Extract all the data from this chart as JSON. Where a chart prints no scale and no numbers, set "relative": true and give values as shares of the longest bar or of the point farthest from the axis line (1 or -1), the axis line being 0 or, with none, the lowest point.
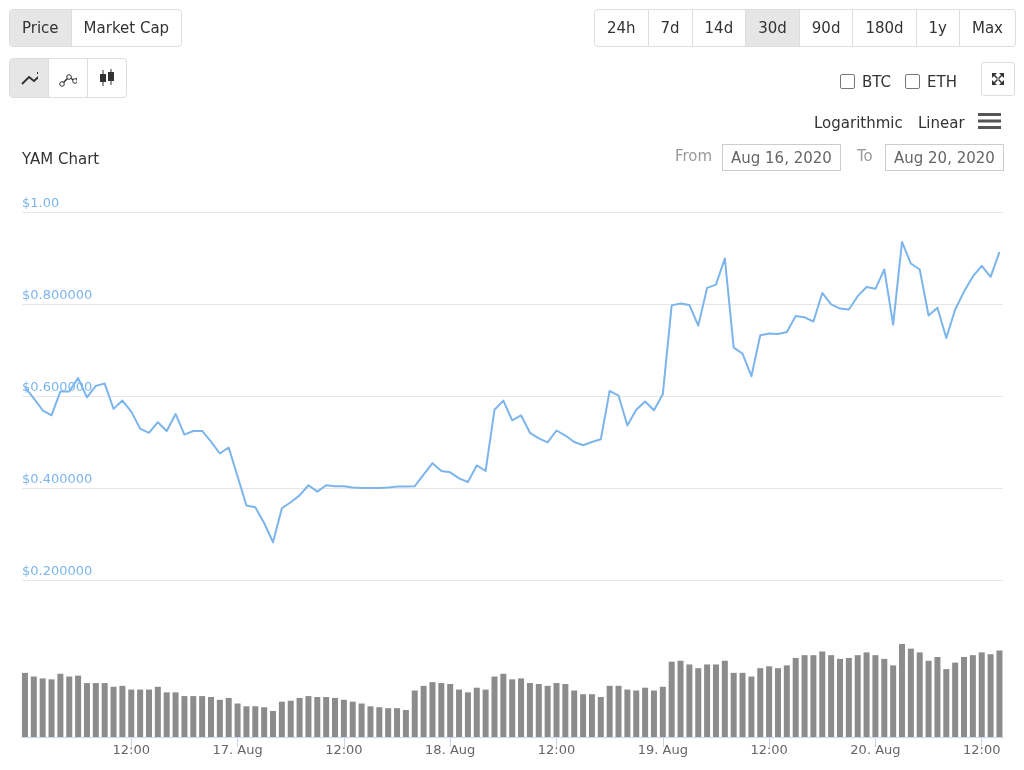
{
  "chart_data": [
    {
      "type": "line",
      "title": "YAM Chart",
      "color": "#7cb5ec",
      "marker": "none",
      "grid": "y",
      "tick_labels": "y",
      "annotations": [
        "Price",
        "Market Cap",
        "24h",
        "7d",
        "14d",
        "30d",
        "90d",
        "180d",
        "1y",
        "Max",
        "BTC",
        "ETH",
        "Logarithmic",
        "Linear",
        "From",
        "Aug 16, 2020",
        "To",
        "Aug 20, 2020"
      ],
      "xlim": [
        "2020-08-15T23:40",
        "2020-08-20T14:24"
      ],
      "ylim": [
        0.2,
        1.0
      ],
      "yticks": [
        {
          "value": 0.2,
          "label": "$0.200000"
        },
        {
          "value": 0.4,
          "label": "$0.400000"
        },
        {
          "value": 0.6,
          "label": "$0.600000"
        },
        {
          "value": 0.8,
          "label": "$0.800000"
        },
        {
          "value": 1.0,
          "label": "$1.00"
        }
      ],
      "x": [
        "2020-08-16T00:00",
        "2020-08-16T01:00",
        "2020-08-16T02:00",
        "2020-08-16T03:00",
        "2020-08-16T04:00",
        "2020-08-16T05:00",
        "2020-08-16T06:00",
        "2020-08-16T07:00",
        "2020-08-16T08:00",
        "2020-08-16T09:00",
        "2020-08-16T10:00",
        "2020-08-16T11:00",
        "2020-08-16T12:00",
        "2020-08-16T13:00",
        "2020-08-16T14:00",
        "2020-08-16T15:00",
        "2020-08-16T16:00",
        "2020-08-16T17:00",
        "2020-08-16T18:00",
        "2020-08-16T19:00",
        "2020-08-16T20:00",
        "2020-08-16T21:00",
        "2020-08-16T22:00",
        "2020-08-16T23:00",
        "2020-08-17T00:00",
        "2020-08-17T01:00",
        "2020-08-17T02:00",
        "2020-08-17T03:00",
        "2020-08-17T04:00",
        "2020-08-17T05:00",
        "2020-08-17T06:00",
        "2020-08-17T07:00",
        "2020-08-17T08:00",
        "2020-08-17T09:00",
        "2020-08-17T10:00",
        "2020-08-17T11:00",
        "2020-08-17T12:00",
        "2020-08-17T13:00",
        "2020-08-17T14:00",
        "2020-08-17T15:00",
        "2020-08-17T16:00",
        "2020-08-17T17:00",
        "2020-08-17T18:00",
        "2020-08-17T19:00",
        "2020-08-17T20:00",
        "2020-08-17T21:00",
        "2020-08-17T22:00",
        "2020-08-17T23:00",
        "2020-08-18T00:00",
        "2020-08-18T01:00",
        "2020-08-18T02:00",
        "2020-08-18T03:00",
        "2020-08-18T04:00",
        "2020-08-18T05:00",
        "2020-08-18T06:00",
        "2020-08-18T07:00",
        "2020-08-18T08:00",
        "2020-08-18T09:00",
        "2020-08-18T10:00",
        "2020-08-18T11:00",
        "2020-08-18T12:00",
        "2020-08-18T13:00",
        "2020-08-18T14:00",
        "2020-08-18T15:00",
        "2020-08-18T16:00",
        "2020-08-18T17:00",
        "2020-08-18T18:00",
        "2020-08-18T19:00",
        "2020-08-18T20:00",
        "2020-08-18T21:00",
        "2020-08-18T22:00",
        "2020-08-18T23:00",
        "2020-08-19T00:00",
        "2020-08-19T01:00",
        "2020-08-19T02:00",
        "2020-08-19T03:00",
        "2020-08-19T04:00",
        "2020-08-19T05:00",
        "2020-08-19T06:00",
        "2020-08-19T07:00",
        "2020-08-19T08:00",
        "2020-08-19T09:00",
        "2020-08-19T10:00",
        "2020-08-19T11:00",
        "2020-08-19T12:00",
        "2020-08-19T13:00",
        "2020-08-19T14:00",
        "2020-08-19T15:00",
        "2020-08-19T16:00",
        "2020-08-19T17:00",
        "2020-08-19T18:00",
        "2020-08-19T19:00",
        "2020-08-19T20:00",
        "2020-08-19T21:00",
        "2020-08-19T22:00",
        "2020-08-19T23:00",
        "2020-08-20T00:00",
        "2020-08-20T01:00",
        "2020-08-20T02:00",
        "2020-08-20T03:00",
        "2020-08-20T04:00",
        "2020-08-20T05:00",
        "2020-08-20T06:00",
        "2020-08-20T07:00",
        "2020-08-20T08:00",
        "2020-08-20T09:00",
        "2020-08-20T10:00",
        "2020-08-20T11:00",
        "2020-08-20T12:00",
        "2020-08-20T13:00",
        "2020-08-20T14:00"
      ],
      "values": [
        0.619,
        0.595,
        0.569,
        0.558,
        0.61,
        0.61,
        0.639,
        0.597,
        0.622,
        0.627,
        0.572,
        0.59,
        0.566,
        0.529,
        0.52,
        0.543,
        0.524,
        0.561,
        0.516,
        0.524,
        0.524,
        0.501,
        0.475,
        0.488,
        0.425,
        0.362,
        0.358,
        0.324,
        0.282,
        0.356,
        0.369,
        0.384,
        0.406,
        0.392,
        0.406,
        0.404,
        0.404,
        0.401,
        0.4,
        0.4,
        0.4,
        0.401,
        0.403,
        0.403,
        0.404,
        0.429,
        0.454,
        0.437,
        0.434,
        0.421,
        0.413,
        0.449,
        0.437,
        0.57,
        0.59,
        0.547,
        0.558,
        0.52,
        0.508,
        0.499,
        0.525,
        0.514,
        0.5,
        0.493,
        0.5,
        0.506,
        0.611,
        0.601,
        0.536,
        0.57,
        0.588,
        0.569,
        0.604,
        0.797,
        0.801,
        0.798,
        0.753,
        0.835,
        0.842,
        0.899,
        0.705,
        0.692,
        0.643,
        0.732,
        0.736,
        0.735,
        0.739,
        0.774,
        0.771,
        0.762,
        0.824,
        0.799,
        0.79,
        0.788,
        0.817,
        0.837,
        0.833,
        0.875,
        0.755,
        0.935,
        0.888,
        0.875,
        0.775,
        0.792,
        0.726,
        0.788,
        0.827,
        0.86,
        0.883,
        0.859,
        0.913
      ]
    },
    {
      "type": "bar",
      "relative": true,
      "color": "#8c8c8c",
      "tick_labels": "x",
      "xlim": [
        "2020-08-15T23:40",
        "2020-08-20T14:24"
      ],
      "xticks": [
        {
          "value": "2020-08-16T12:00",
          "label": "12:00"
        },
        {
          "value": "2020-08-17T00:00",
          "label": "17. Aug"
        },
        {
          "value": "2020-08-17T12:00",
          "label": "12:00"
        },
        {
          "value": "2020-08-18T00:00",
          "label": "18. Aug"
        },
        {
          "value": "2020-08-18T12:00",
          "label": "12:00"
        },
        {
          "value": "2020-08-19T00:00",
          "label": "19. Aug"
        },
        {
          "value": "2020-08-19T12:00",
          "label": "12:00"
        },
        {
          "value": "2020-08-20T00:00",
          "label": "20. Aug"
        },
        {
          "value": "2020-08-20T12:00",
          "label": "12:00"
        }
      ],
      "x": [
        "2020-08-16T00:00",
        "2020-08-16T01:00",
        "2020-08-16T02:00",
        "2020-08-16T03:00",
        "2020-08-16T04:00",
        "2020-08-16T05:00",
        "2020-08-16T06:00",
        "2020-08-16T07:00",
        "2020-08-16T08:00",
        "2020-08-16T09:00",
        "2020-08-16T10:00",
        "2020-08-16T11:00",
        "2020-08-16T12:00",
        "2020-08-16T13:00",
        "2020-08-16T14:00",
        "2020-08-16T15:00",
        "2020-08-16T16:00",
        "2020-08-16T17:00",
        "2020-08-16T18:00",
        "2020-08-16T19:00",
        "2020-08-16T20:00",
        "2020-08-16T21:00",
        "2020-08-16T22:00",
        "2020-08-16T23:00",
        "2020-08-17T00:00",
        "2020-08-17T01:00",
        "2020-08-17T02:00",
        "2020-08-17T03:00",
        "2020-08-17T04:00",
        "2020-08-17T05:00",
        "2020-08-17T06:00",
        "2020-08-17T07:00",
        "2020-08-17T08:00",
        "2020-08-17T09:00",
        "2020-08-17T10:00",
        "2020-08-17T11:00",
        "2020-08-17T12:00",
        "2020-08-17T13:00",
        "2020-08-17T14:00",
        "2020-08-17T15:00",
        "2020-08-17T16:00",
        "2020-08-17T17:00",
        "2020-08-17T18:00",
        "2020-08-17T19:00",
        "2020-08-17T20:00",
        "2020-08-17T21:00",
        "2020-08-17T22:00",
        "2020-08-17T23:00",
        "2020-08-18T00:00",
        "2020-08-18T01:00",
        "2020-08-18T02:00",
        "2020-08-18T03:00",
        "2020-08-18T04:00",
        "2020-08-18T05:00",
        "2020-08-18T06:00",
        "2020-08-18T07:00",
        "2020-08-18T08:00",
        "2020-08-18T09:00",
        "2020-08-18T10:00",
        "2020-08-18T11:00",
        "2020-08-18T12:00",
        "2020-08-18T13:00",
        "2020-08-18T14:00",
        "2020-08-18T15:00",
        "2020-08-18T16:00",
        "2020-08-18T17:00",
        "2020-08-18T18:00",
        "2020-08-18T19:00",
        "2020-08-18T20:00",
        "2020-08-18T21:00",
        "2020-08-18T22:00",
        "2020-08-18T23:00",
        "2020-08-19T00:00",
        "2020-08-19T01:00",
        "2020-08-19T02:00",
        "2020-08-19T03:00",
        "2020-08-19T04:00",
        "2020-08-19T05:00",
        "2020-08-19T06:00",
        "2020-08-19T07:00",
        "2020-08-19T08:00",
        "2020-08-19T09:00",
        "2020-08-19T10:00",
        "2020-08-19T11:00",
        "2020-08-19T12:00",
        "2020-08-19T13:00",
        "2020-08-19T14:00",
        "2020-08-19T15:00",
        "2020-08-19T16:00",
        "2020-08-19T17:00",
        "2020-08-19T18:00",
        "2020-08-19T19:00",
        "2020-08-19T20:00",
        "2020-08-19T21:00",
        "2020-08-19T22:00",
        "2020-08-19T23:00",
        "2020-08-20T00:00",
        "2020-08-20T01:00",
        "2020-08-20T02:00",
        "2020-08-20T03:00",
        "2020-08-20T04:00",
        "2020-08-20T05:00",
        "2020-08-20T06:00",
        "2020-08-20T07:00",
        "2020-08-20T08:00",
        "2020-08-20T09:00",
        "2020-08-20T10:00",
        "2020-08-20T11:00",
        "2020-08-20T12:00",
        "2020-08-20T13:00",
        "2020-08-20T14:00"
      ],
      "values": [
        0.69,
        0.65,
        0.63,
        0.62,
        0.68,
        0.65,
        0.66,
        0.58,
        0.58,
        0.58,
        0.54,
        0.55,
        0.51,
        0.51,
        0.51,
        0.54,
        0.48,
        0.48,
        0.44,
        0.44,
        0.44,
        0.43,
        0.4,
        0.42,
        0.36,
        0.33,
        0.33,
        0.32,
        0.28,
        0.38,
        0.39,
        0.42,
        0.44,
        0.43,
        0.43,
        0.42,
        0.4,
        0.38,
        0.36,
        0.33,
        0.32,
        0.31,
        0.31,
        0.29,
        0.5,
        0.55,
        0.59,
        0.58,
        0.57,
        0.51,
        0.48,
        0.53,
        0.51,
        0.65,
        0.68,
        0.62,
        0.63,
        0.58,
        0.57,
        0.55,
        0.58,
        0.57,
        0.5,
        0.46,
        0.46,
        0.43,
        0.55,
        0.55,
        0.51,
        0.5,
        0.53,
        0.5,
        0.54,
        0.81,
        0.82,
        0.78,
        0.74,
        0.78,
        0.78,
        0.82,
        0.69,
        0.69,
        0.65,
        0.74,
        0.76,
        0.74,
        0.77,
        0.85,
        0.88,
        0.88,
        0.92,
        0.88,
        0.84,
        0.85,
        0.88,
        0.91,
        0.88,
        0.84,
        0.77,
        1,
        0.95,
        0.91,
        0.82,
        0.86,
        0.73,
        0.8,
        0.86,
        0.88,
        0.91,
        0.89,
        0.93
      ]
    }
  ]
}
